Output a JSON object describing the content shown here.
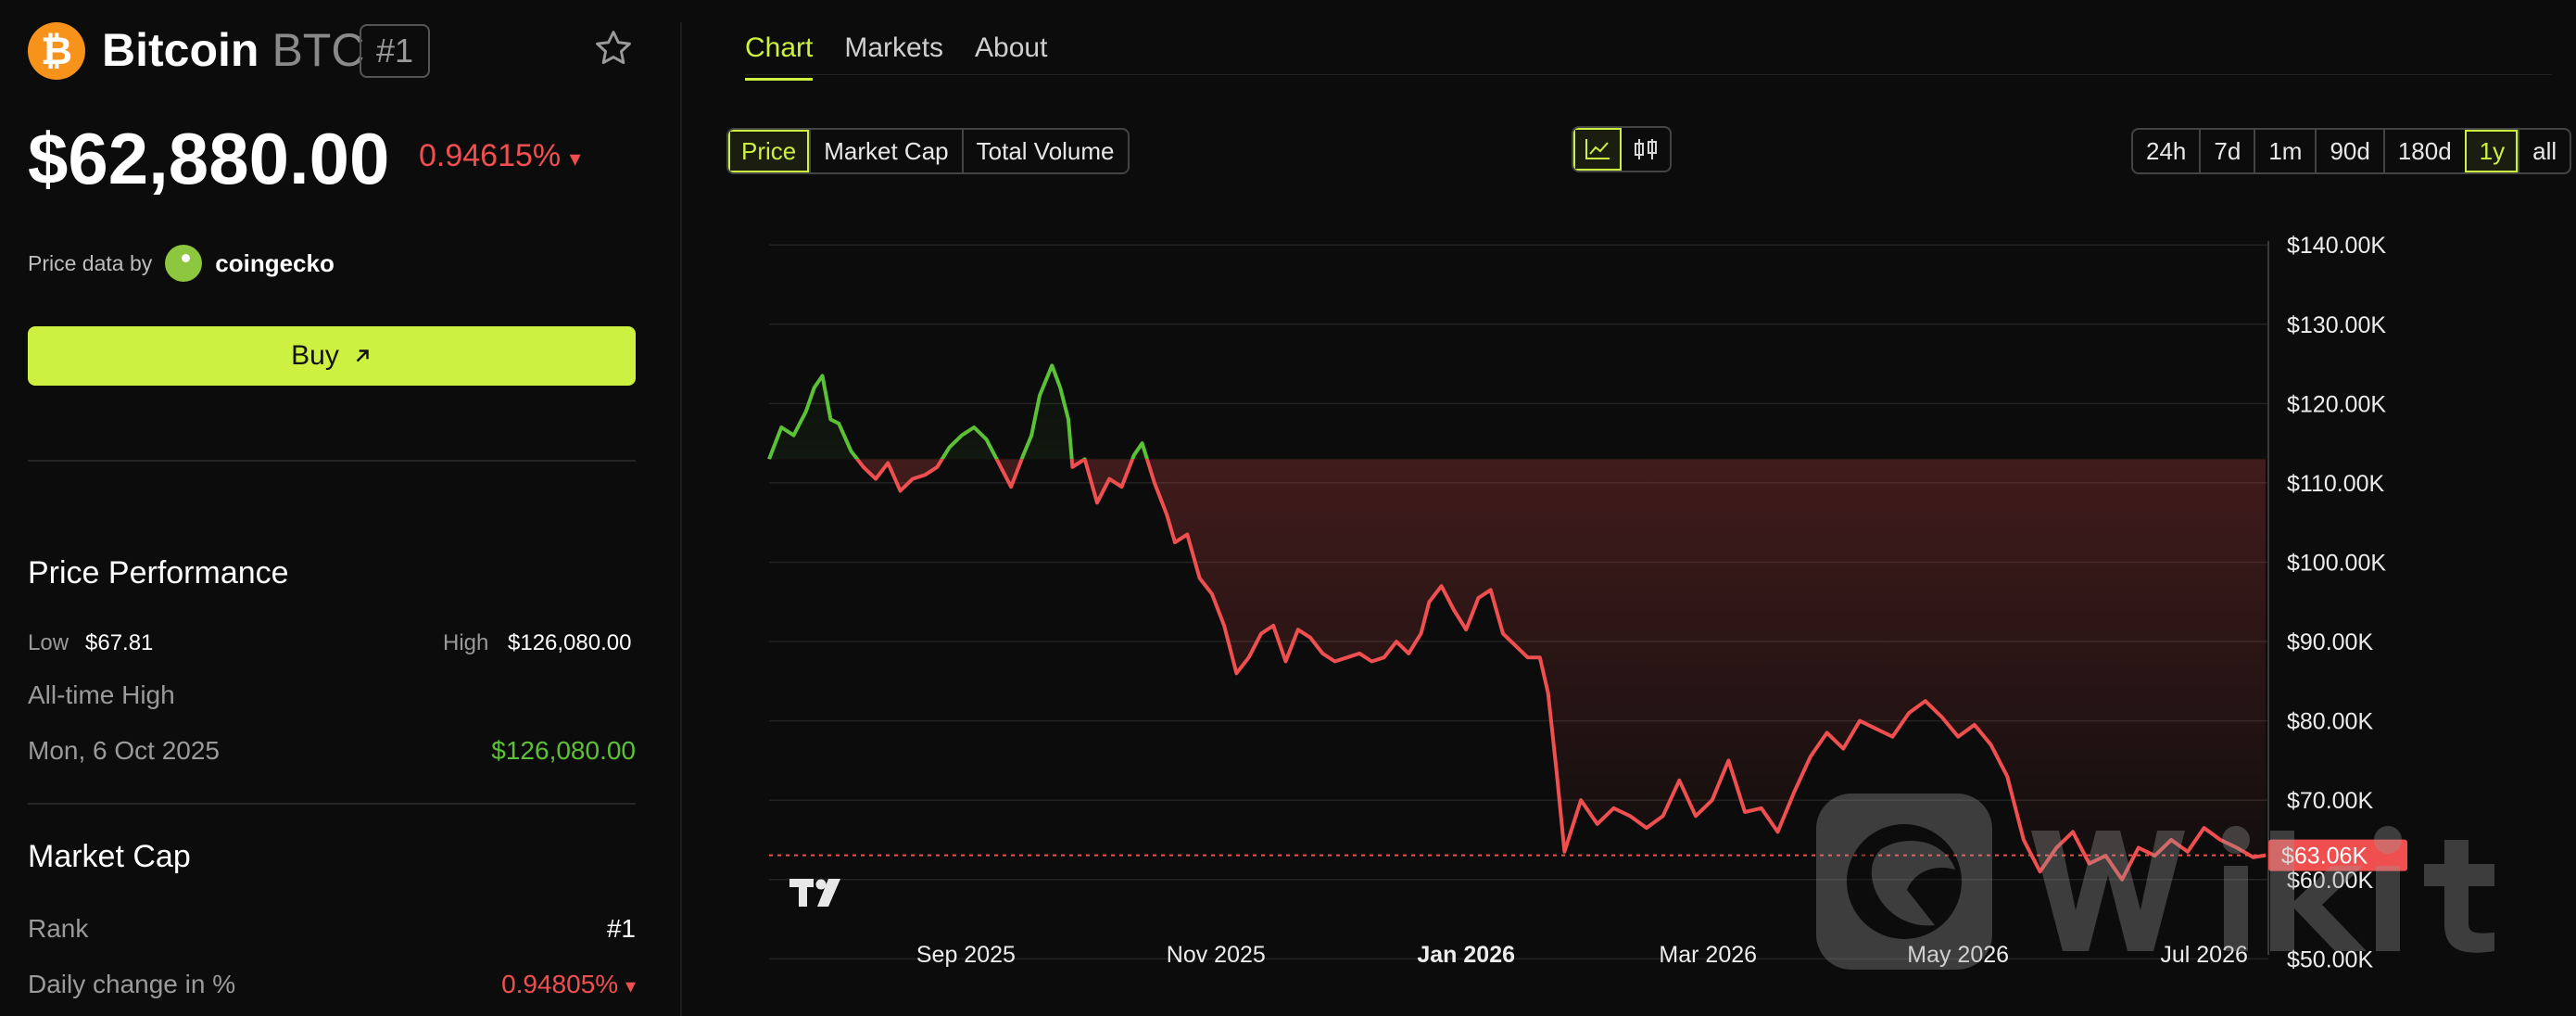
{
  "coin": {
    "name": "Bitcoin",
    "symbol": "BTC",
    "rank_badge": "#1",
    "logo_glyph": "₿",
    "brand_color": "#f7931a"
  },
  "price": {
    "value": "$62,880.00",
    "change": "0.94615%",
    "change_direction": "▾"
  },
  "price_source": {
    "label": "Price data by",
    "provider": "coingecko"
  },
  "buy_button": {
    "label": "Buy",
    "icon": "arrow-up-right-icon"
  },
  "performance": {
    "title": "Price Performance",
    "low_label": "Low",
    "low_value": "$67.81",
    "high_label": "High",
    "high_value": "$126,080.00",
    "ath_label": "All-time High",
    "ath_date": "Mon, 6 Oct 2025",
    "ath_value": "$126,080.00"
  },
  "market_cap": {
    "title": "Market Cap",
    "rank_label": "Rank",
    "rank_value": "#1",
    "daily_change_label": "Daily change in %",
    "daily_change_value": "0.94805%",
    "daily_change_direction": "▾"
  },
  "tabs": [
    {
      "label": "Chart",
      "active": true
    },
    {
      "label": "Markets",
      "active": false
    },
    {
      "label": "About",
      "active": false
    }
  ],
  "metric_buttons": [
    {
      "label": "Price",
      "active": true
    },
    {
      "label": "Market Cap",
      "active": false
    },
    {
      "label": "Total Volume",
      "active": false
    }
  ],
  "range_buttons": [
    {
      "label": "24h",
      "active": false
    },
    {
      "label": "7d",
      "active": false
    },
    {
      "label": "1m",
      "active": false
    },
    {
      "label": "90d",
      "active": false
    },
    {
      "label": "180d",
      "active": false
    },
    {
      "label": "1y",
      "active": true
    },
    {
      "label": "all",
      "active": false
    }
  ],
  "colors": {
    "accent": "#cdf140",
    "up": "#5bc236",
    "down": "#f04f4f",
    "background": "#0c0c0c"
  },
  "chart_data": {
    "type": "line",
    "title": "",
    "xlabel": "",
    "ylabel": "",
    "x_ticks": [
      "Sep 2025",
      "Nov 2025",
      "Jan 2026",
      "Mar 2026",
      "May 2026",
      "Jul 2026"
    ],
    "y_ticks": [
      "$50.00K",
      "$60.00K",
      "$70.00K",
      "$80.00K",
      "$90.00K",
      "$100.00K",
      "$110.00K",
      "$120.00K",
      "$130.00K",
      "$140.00K"
    ],
    "ylim": [
      47000,
      144000
    ],
    "xlim": [
      "2025-07-29",
      "2026-07-29"
    ],
    "baseline_value": 113000,
    "current_price_label": "$63.06K",
    "current_price_value": 63060,
    "grid": true,
    "series": [
      {
        "x": [
          "2025-07-29",
          "2025-08-01",
          "2025-08-04",
          "2025-08-07",
          "2025-08-09",
          "2025-08-11",
          "2025-08-13",
          "2025-08-15",
          "2025-08-18",
          "2025-08-21",
          "2025-08-24",
          "2025-08-27",
          "2025-08-30",
          "2025-09-02",
          "2025-09-05",
          "2025-09-08",
          "2025-09-11",
          "2025-09-14",
          "2025-09-17",
          "2025-09-20",
          "2025-09-23",
          "2025-09-26",
          "2025-09-29",
          "2025-10-01",
          "2025-10-03",
          "2025-10-06",
          "2025-10-08",
          "2025-10-10",
          "2025-10-11",
          "2025-10-14",
          "2025-10-17",
          "2025-10-20",
          "2025-10-23",
          "2025-10-26",
          "2025-10-28",
          "2025-10-31",
          "2025-11-03",
          "2025-11-05",
          "2025-11-08",
          "2025-11-11",
          "2025-11-14",
          "2025-11-17",
          "2025-11-20",
          "2025-11-23",
          "2025-11-26",
          "2025-11-29",
          "2025-12-02",
          "2025-12-05",
          "2025-12-08",
          "2025-12-11",
          "2025-12-14",
          "2025-12-17",
          "2025-12-20",
          "2025-12-23",
          "2025-12-26",
          "2025-12-29",
          "2026-01-01",
          "2026-01-04",
          "2026-01-06",
          "2026-01-09",
          "2026-01-12",
          "2026-01-15",
          "2026-01-18",
          "2026-01-21",
          "2026-01-24",
          "2026-01-27",
          "2026-01-30",
          "2026-02-02",
          "2026-02-04",
          "2026-02-06",
          "2026-02-08",
          "2026-02-12",
          "2026-02-16",
          "2026-02-20",
          "2026-02-24",
          "2026-02-28",
          "2026-03-04",
          "2026-03-08",
          "2026-03-12",
          "2026-03-16",
          "2026-03-20",
          "2026-03-24",
          "2026-03-28",
          "2026-04-01",
          "2026-04-05",
          "2026-04-09",
          "2026-04-13",
          "2026-04-17",
          "2026-04-21",
          "2026-04-25",
          "2026-04-29",
          "2026-05-03",
          "2026-05-07",
          "2026-05-11",
          "2026-05-15",
          "2026-05-19",
          "2026-05-23",
          "2026-05-27",
          "2026-05-31",
          "2026-06-04",
          "2026-06-08",
          "2026-06-12",
          "2026-06-16",
          "2026-06-20",
          "2026-06-24",
          "2026-06-28",
          "2026-07-02",
          "2026-07-06",
          "2026-07-10",
          "2026-07-14",
          "2026-07-18",
          "2026-07-22",
          "2026-07-26",
          "2026-07-29"
        ],
        "y": [
          113000,
          117000,
          116000,
          119000,
          122000,
          123500,
          118000,
          117500,
          114000,
          112000,
          110500,
          112500,
          109000,
          110500,
          111000,
          112000,
          114500,
          116000,
          117000,
          115500,
          112500,
          109500,
          113500,
          116000,
          121000,
          124800,
          122000,
          118000,
          112000,
          113000,
          107500,
          110500,
          109500,
          113500,
          115000,
          110000,
          106000,
          102500,
          103500,
          98000,
          96000,
          92000,
          86000,
          88000,
          91000,
          92000,
          87500,
          91500,
          90500,
          88500,
          87500,
          88000,
          88500,
          87500,
          88000,
          90000,
          88500,
          91000,
          95000,
          97000,
          94000,
          91500,
          95500,
          96500,
          91000,
          89500,
          88000,
          88000,
          83500,
          74000,
          63500,
          70000,
          67000,
          69000,
          68000,
          66500,
          68000,
          72500,
          68000,
          70000,
          75000,
          68500,
          69000,
          66000,
          71000,
          75500,
          78500,
          76500,
          80000,
          79000,
          78000,
          81000,
          82500,
          80500,
          78000,
          79500,
          77000,
          73000,
          65000,
          61000,
          64000,
          66000,
          62000,
          63000,
          60000,
          64000,
          63000,
          65000,
          63500,
          66500,
          65000,
          64000,
          62800,
          63060
        ]
      }
    ]
  }
}
